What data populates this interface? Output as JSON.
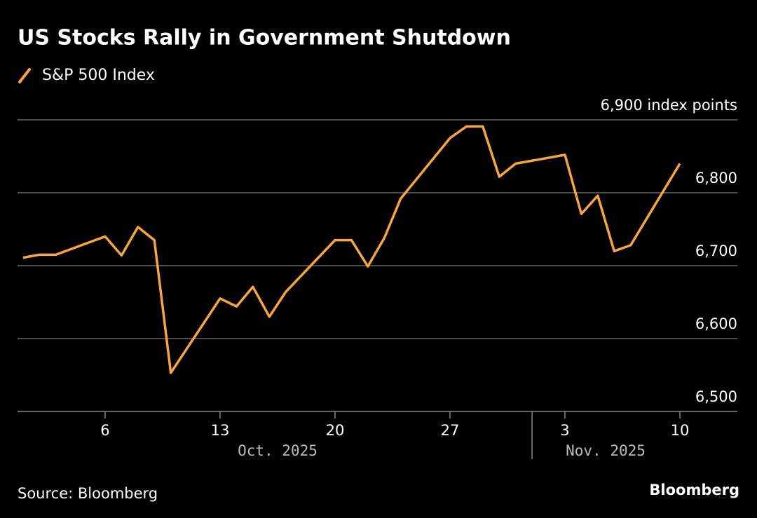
{
  "chart_data": {
    "type": "line",
    "title": "US Stocks Rally in Government Shutdown",
    "source": "Source: Bloomberg",
    "logo": "Bloomberg",
    "x": [
      "2025-10-01",
      "2025-10-02",
      "2025-10-03",
      "2025-10-06",
      "2025-10-07",
      "2025-10-08",
      "2025-10-09",
      "2025-10-10",
      "2025-10-13",
      "2025-10-14",
      "2025-10-15",
      "2025-10-16",
      "2025-10-17",
      "2025-10-20",
      "2025-10-21",
      "2025-10-22",
      "2025-10-23",
      "2025-10-24",
      "2025-10-27",
      "2025-10-28",
      "2025-10-29",
      "2025-10-30",
      "2025-10-31",
      "2025-11-03",
      "2025-11-04",
      "2025-11-05",
      "2025-11-06",
      "2025-11-07",
      "2025-11-10"
    ],
    "series": [
      {
        "name": "S&P 500 Index",
        "color": "#f7a541",
        "values": [
          6711,
          6715,
          6715,
          6740,
          6714,
          6753,
          6735,
          6553,
          6655,
          6644,
          6671,
          6630,
          6664,
          6735,
          6735,
          6699,
          6738,
          6792,
          6875,
          6891,
          6891,
          6822,
          6840,
          6852,
          6771,
          6796,
          6720,
          6728,
          6840
        ]
      }
    ],
    "xlim": [
      "2025-09-30T16:00",
      "2025-11-13T12:00"
    ],
    "xticks": [
      {
        "value": "2025-10-06",
        "label": "6"
      },
      {
        "value": "2025-10-13",
        "label": "13"
      },
      {
        "value": "2025-10-20",
        "label": "20"
      },
      {
        "value": "2025-10-27",
        "label": "27"
      },
      {
        "value": "2025-11-03",
        "label": "3"
      },
      {
        "value": "2025-11-10",
        "label": "10"
      }
    ],
    "months": [
      {
        "value": "2025-10-01",
        "label": "Oct. 2025"
      },
      {
        "value": "2025-11-01",
        "label": "Nov. 2025"
      }
    ],
    "ylim": [
      6500,
      6900
    ],
    "yticks": [
      {
        "value": 6500,
        "label": "6,500"
      },
      {
        "value": 6600,
        "label": "6,600"
      },
      {
        "value": 6700,
        "label": "6,700"
      },
      {
        "value": 6800,
        "label": "6,800"
      },
      {
        "value": 6900,
        "label": "6,900 index points"
      }
    ],
    "grid": true
  }
}
